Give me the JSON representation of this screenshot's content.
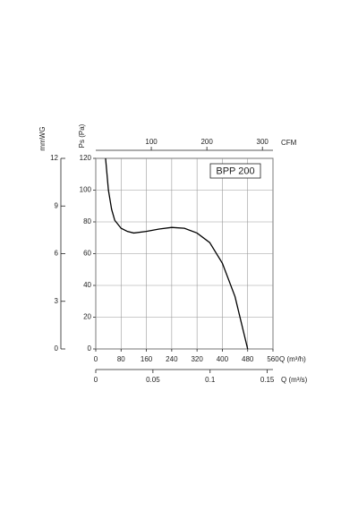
{
  "chart_data": {
    "type": "line",
    "xlabel": "Q (m³/h)",
    "ylabel": "Ps (Pa)",
    "x": [
      31,
      40,
      50,
      60,
      80,
      100,
      120,
      160,
      200,
      240,
      280,
      320,
      360,
      400,
      440,
      480
    ],
    "series": [
      {
        "name": "BPP 200",
        "color": "#000000",
        "values": [
          120,
          100,
          88,
          81,
          76,
          74,
          73,
          74,
          75.5,
          76.5,
          76,
          73,
          67,
          54,
          33,
          0
        ]
      }
    ],
    "xlim": [
      0,
      560
    ],
    "xticks": [
      0,
      80,
      160,
      240,
      320,
      400,
      480,
      560
    ],
    "ylim": [
      0,
      120
    ],
    "yticks": [
      0,
      20,
      40,
      60,
      80,
      100,
      120
    ],
    "grid": true,
    "legend": "top-right",
    "y2label": "mmWG",
    "y2lim": [
      0,
      12
    ],
    "y2ticks": [
      0,
      3,
      6,
      9,
      12
    ],
    "x2label": "CFM",
    "x2lim": [
      0,
      319
    ],
    "x2ticks": [
      100,
      200,
      300
    ],
    "x3label": "Q (m³/s)",
    "x3lim": [
      0,
      0.155
    ],
    "x3ticks": [
      0,
      0.05,
      0.1,
      0.15
    ]
  }
}
